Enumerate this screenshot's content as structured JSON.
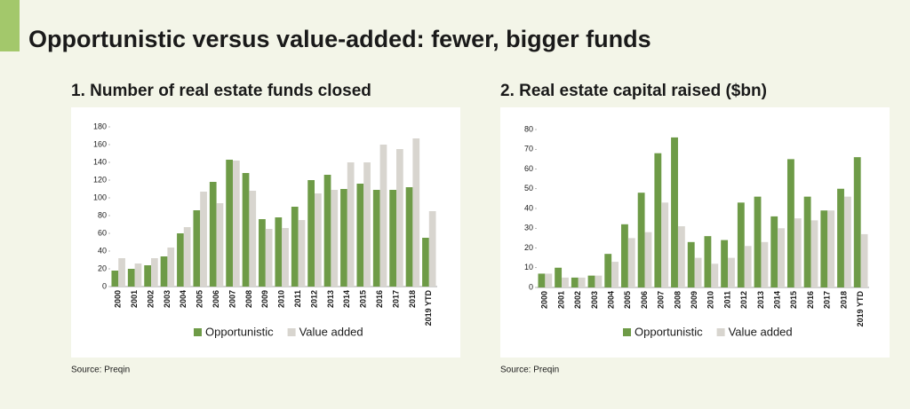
{
  "title": "Opportunistic versus value-added: fewer, bigger funds",
  "chart_data": [
    {
      "type": "bar",
      "title": "1. Number of real estate funds closed",
      "source": "Source: Preqin",
      "categories": [
        "2000",
        "2001",
        "2002",
        "2003",
        "2004",
        "2005",
        "2006",
        "2007",
        "2008",
        "2009",
        "2010",
        "2011",
        "2012",
        "2013",
        "2014",
        "2015",
        "2016",
        "2017",
        "2018",
        "2019 YTD"
      ],
      "series": [
        {
          "name": "Opportunistic",
          "color": "#6e9b47",
          "values": [
            18,
            20,
            24,
            34,
            60,
            86,
            118,
            143,
            128,
            76,
            78,
            90,
            120,
            126,
            110,
            116,
            109,
            109,
            112,
            55
          ]
        },
        {
          "name": "Value added",
          "color": "#d8d5cf",
          "values": [
            32,
            26,
            32,
            44,
            67,
            107,
            94,
            142,
            108,
            65,
            66,
            75,
            105,
            109,
            140,
            140,
            160,
            155,
            167,
            85
          ]
        }
      ],
      "ylim": [
        0,
        180
      ],
      "yticks": [
        0,
        20,
        40,
        60,
        80,
        100,
        120,
        140,
        160,
        180
      ]
    },
    {
      "type": "bar",
      "title": "2. Real estate capital raised ($bn)",
      "source": "Source: Preqin",
      "categories": [
        "2000",
        "2001",
        "2002",
        "2003",
        "2004",
        "2005",
        "2006",
        "2007",
        "2008",
        "2009",
        "2010",
        "2011",
        "2012",
        "2013",
        "2014",
        "2015",
        "2016",
        "2017",
        "2018",
        "2019 YTD"
      ],
      "series": [
        {
          "name": "Opportunistic",
          "color": "#6e9b47",
          "values": [
            7,
            10,
            5,
            6,
            17,
            32,
            48,
            68,
            76,
            23,
            26,
            24,
            43,
            46,
            36,
            65,
            46,
            39,
            50,
            66
          ]
        },
        {
          "name": "Value added",
          "color": "#d8d5cf",
          "values": [
            7,
            5,
            5,
            6,
            13,
            25,
            28,
            43,
            31,
            15,
            12,
            15,
            21,
            23,
            30,
            35,
            34,
            39,
            46,
            27
          ]
        }
      ],
      "ylim": [
        0,
        80
      ],
      "yticks": [
        0,
        10,
        20,
        30,
        40,
        50,
        60,
        70,
        80
      ]
    }
  ]
}
